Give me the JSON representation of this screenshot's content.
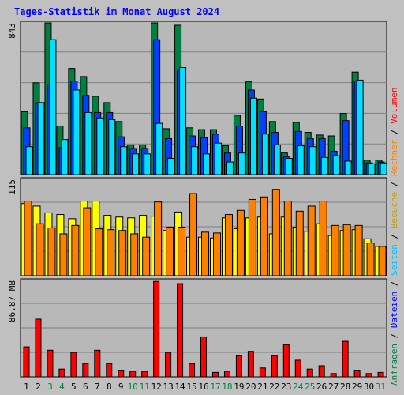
{
  "title": "Tages-Statistik im Monat August 2024",
  "colors": {
    "background": "#c0c0c0",
    "panel": "#b8b8b8",
    "title": "#0000ff",
    "grid": "#808080",
    "hits": "#008040",
    "files": "#0040ff",
    "pages": "#00e0ff",
    "visits": "#ffff00",
    "sites": "#ff8000",
    "kbytes": "#ff0000",
    "weekday_label": "#000000",
    "weekend_label": "#008040"
  },
  "right_labels": {
    "top": [
      {
        "text": "Anfragen",
        "color": "#008040"
      },
      {
        "text": " / ",
        "color": "#000000"
      },
      {
        "text": "Dateien",
        "color": "#0000ff"
      },
      {
        "text": " / ",
        "color": "#000000"
      },
      {
        "text": "Seiten",
        "color": "#00c0ff"
      },
      {
        "text": " / ",
        "color": "#000000"
      },
      {
        "text": "Besuche",
        "color": "#c0a000"
      },
      {
        "text": " / ",
        "color": "#000000"
      },
      {
        "text": "Rechner",
        "color": "#ff8000"
      },
      {
        "text": " / ",
        "color": "#000000"
      },
      {
        "text": "Volumen",
        "color": "#ff0000"
      }
    ]
  },
  "chart_data": {
    "type": "bar",
    "title": "Tages-Statistik im Monat August 2024",
    "x": {
      "categories": [
        "1",
        "2",
        "3",
        "4",
        "5",
        "6",
        "7",
        "8",
        "9",
        "10",
        "11",
        "12",
        "13",
        "14",
        "15",
        "16",
        "17",
        "18",
        "19",
        "20",
        "21",
        "22",
        "23",
        "24",
        "25",
        "26",
        "27",
        "28",
        "29",
        "30",
        "31"
      ],
      "weekend": [
        false,
        false,
        true,
        true,
        false,
        false,
        false,
        false,
        false,
        true,
        true,
        false,
        false,
        false,
        false,
        false,
        true,
        true,
        false,
        false,
        false,
        false,
        false,
        true,
        true,
        false,
        false,
        false,
        false,
        false,
        true
      ]
    },
    "panels": [
      {
        "name": "requests-files-pages",
        "max_label": "843",
        "ylim": [
          0,
          843
        ],
        "series": [
          {
            "key": "hits",
            "values": [
              350,
              510,
              843,
              270,
              590,
              545,
              435,
              400,
              295,
              165,
              165,
              843,
              255,
              830,
              260,
              250,
              250,
              160,
              330,
              515,
              420,
              295,
              120,
              290,
              235,
              220,
              215,
              340,
              570,
              80,
              80
            ]
          },
          {
            "key": "files",
            "values": [
              260,
              400,
              500,
              150,
              520,
              440,
              345,
              345,
              210,
              145,
              145,
              750,
              200,
              580,
              215,
              205,
              225,
              120,
              270,
              470,
              350,
              235,
              100,
              240,
              200,
              200,
              130,
              300,
              520,
              65,
              70
            ]
          },
          {
            "key": "pages",
            "values": [
              155,
              400,
              750,
              195,
              470,
              345,
              315,
              305,
              155,
              115,
              115,
              285,
              90,
              595,
              155,
              115,
              175,
              70,
              120,
              425,
              225,
              165,
              90,
              160,
              155,
              95,
              105,
              75,
              525,
              60,
              65
            ]
          }
        ]
      },
      {
        "name": "visits-sites",
        "max_label": "115",
        "ylim": [
          0,
          115
        ],
        "series": [
          {
            "key": "visits",
            "values": [
              86,
              83,
              75,
              73,
              68,
              89,
              89,
              72,
              70,
              69,
              72,
              71,
              54,
              76,
              46,
              46,
              45,
              69,
              56,
              69,
              70,
              50,
              70,
              58,
              53,
              62,
              48,
              54,
              55,
              44,
              35
            ]
          },
          {
            "key": "sites",
            "values": [
              89,
              62,
              57,
              50,
              60,
              81,
              56,
              55,
              54,
              50,
              46,
              88,
              58,
              58,
              98,
              52,
              51,
              73,
              78,
              91,
              94,
              103,
              89,
              77,
              83,
              89,
              60,
              61,
              60,
              39,
              35
            ]
          }
        ]
      },
      {
        "name": "volume",
        "max_label": "86.87 MB",
        "ylim": [
          0,
          86.87
        ],
        "series": [
          {
            "key": "kbytes",
            "values": [
              27,
              52,
              24,
              7,
              22,
              12,
              24,
              12,
              6,
              5,
              5,
              86,
              22,
              84,
              12,
              36,
              4,
              5,
              19,
              23,
              8,
              19,
              29,
              15,
              7,
              10,
              3,
              32,
              6,
              3,
              4
            ]
          }
        ]
      }
    ]
  }
}
